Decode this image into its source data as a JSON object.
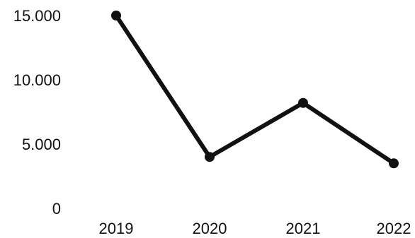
{
  "chart_data": {
    "type": "line",
    "title": "",
    "xlabel": "",
    "ylabel": "",
    "categories": [
      "2019",
      "2020",
      "2021",
      "2022"
    ],
    "series": [
      {
        "values": [
          15000,
          4000,
          8200,
          3500
        ]
      }
    ],
    "ylim": [
      0,
      15000
    ],
    "yticks": [
      0,
      5000,
      10000,
      15000
    ],
    "ytick_labels": [
      "0",
      "5.000",
      "10.000",
      "15.000"
    ],
    "grid": false,
    "legend": "none",
    "colors": {
      "line": "#111111",
      "marker": "#111111",
      "text": "#111111",
      "background": "#ffffff"
    }
  }
}
